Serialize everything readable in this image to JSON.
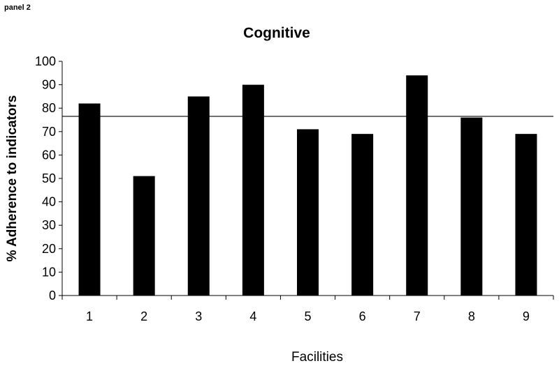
{
  "panel_label": "panel 2",
  "chart_data": {
    "type": "bar",
    "title": "Cognitive",
    "xlabel": "Facilities",
    "ylabel": "% Adherence to indicators",
    "categories": [
      "1",
      "2",
      "3",
      "4",
      "5",
      "6",
      "7",
      "8",
      "9"
    ],
    "values": [
      82,
      51,
      85,
      90,
      71,
      69,
      94,
      76,
      69
    ],
    "ylim": [
      0,
      100
    ],
    "yticks": [
      0,
      10,
      20,
      30,
      40,
      50,
      60,
      70,
      80,
      90,
      100
    ],
    "reference_line": 76.5,
    "grid": false,
    "legend": "none",
    "bar_color": "#000000"
  }
}
